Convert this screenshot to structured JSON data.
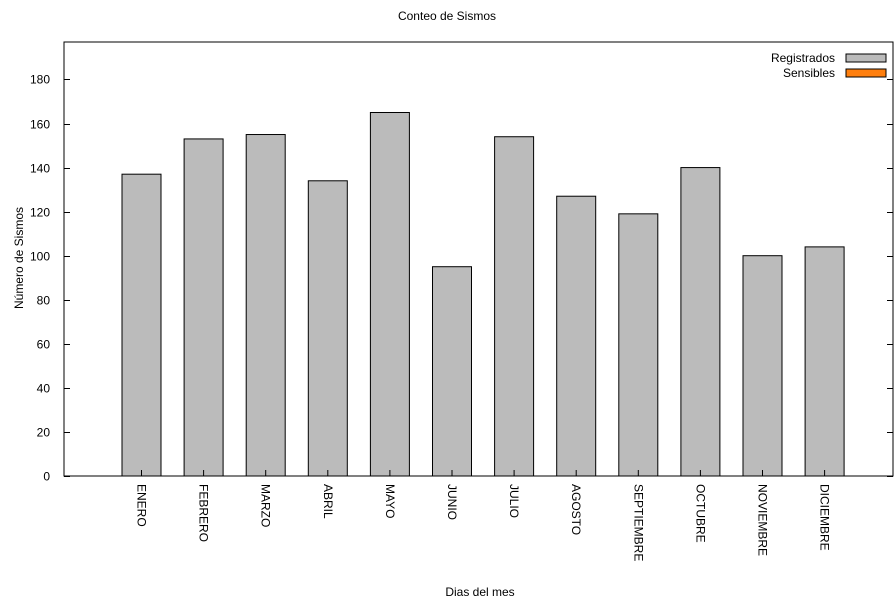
{
  "chart_data": {
    "type": "bar",
    "title": "Conteo de Sismos",
    "xlabel": "Dias del mes",
    "ylabel": "Número de Sismos",
    "categories": [
      "ENERO",
      "FEBRERO",
      "MARZO",
      "ABRIL",
      "MAYO",
      "JUNIO",
      "JULIO",
      "AGOSTO",
      "SEPTIEMBRE",
      "OCTUBRE",
      "NOVIEMBRE",
      "DICIEMBRE"
    ],
    "series": [
      {
        "name": "Registrados",
        "color": "#bbbbbb",
        "values": [
          137,
          153,
          155,
          134,
          165,
          95,
          154,
          127,
          119,
          140,
          100,
          104
        ]
      },
      {
        "name": "Sensibles",
        "color": "#ff7f0e",
        "values": [
          0,
          0,
          0,
          0,
          0,
          0,
          0,
          0,
          0,
          0,
          0,
          0
        ]
      }
    ],
    "ylim": [
      0,
      197
    ],
    "yticks": [
      0,
      20,
      40,
      60,
      80,
      100,
      120,
      140,
      160,
      180
    ],
    "grid": false,
    "legend_position": "top-right"
  }
}
